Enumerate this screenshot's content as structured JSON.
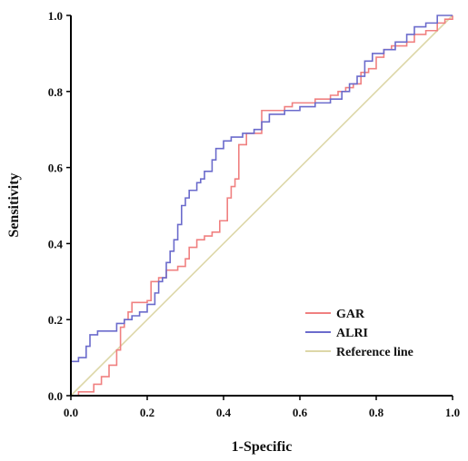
{
  "chart_data": {
    "type": "line",
    "title": "",
    "xlabel": "1-Specific",
    "ylabel": "Sensitivity",
    "xlim": [
      0,
      1
    ],
    "ylim": [
      0,
      1
    ],
    "x_ticks": [
      "0.0",
      "0.2",
      "0.4",
      "0.6",
      "0.8",
      "1.0"
    ],
    "y_ticks": [
      "0.0",
      "0.2",
      "0.4",
      "0.6",
      "0.8",
      "1.0"
    ],
    "grid": false,
    "legend_position": "bottom-right",
    "series": [
      {
        "name": "GAR",
        "color": "#f08080",
        "step": true,
        "points": [
          [
            0.0,
            0.0
          ],
          [
            0.02,
            0.01
          ],
          [
            0.06,
            0.03
          ],
          [
            0.08,
            0.05
          ],
          [
            0.1,
            0.08
          ],
          [
            0.12,
            0.12
          ],
          [
            0.13,
            0.18
          ],
          [
            0.14,
            0.2
          ],
          [
            0.15,
            0.22
          ],
          [
            0.16,
            0.245
          ],
          [
            0.2,
            0.25
          ],
          [
            0.21,
            0.3
          ],
          [
            0.23,
            0.31
          ],
          [
            0.25,
            0.33
          ],
          [
            0.28,
            0.34
          ],
          [
            0.3,
            0.36
          ],
          [
            0.31,
            0.39
          ],
          [
            0.33,
            0.41
          ],
          [
            0.35,
            0.42
          ],
          [
            0.37,
            0.43
          ],
          [
            0.39,
            0.46
          ],
          [
            0.41,
            0.52
          ],
          [
            0.42,
            0.55
          ],
          [
            0.43,
            0.57
          ],
          [
            0.44,
            0.66
          ],
          [
            0.46,
            0.69
          ],
          [
            0.48,
            0.69
          ],
          [
            0.5,
            0.75
          ],
          [
            0.53,
            0.75
          ],
          [
            0.56,
            0.76
          ],
          [
            0.58,
            0.77
          ],
          [
            0.62,
            0.77
          ],
          [
            0.64,
            0.78
          ],
          [
            0.68,
            0.79
          ],
          [
            0.7,
            0.8
          ],
          [
            0.72,
            0.81
          ],
          [
            0.74,
            0.82
          ],
          [
            0.76,
            0.85
          ],
          [
            0.78,
            0.86
          ],
          [
            0.8,
            0.89
          ],
          [
            0.82,
            0.91
          ],
          [
            0.84,
            0.92
          ],
          [
            0.88,
            0.93
          ],
          [
            0.9,
            0.95
          ],
          [
            0.93,
            0.96
          ],
          [
            0.96,
            0.98
          ],
          [
            0.98,
            0.99
          ],
          [
            1.0,
            1.0
          ]
        ]
      },
      {
        "name": "ALRI",
        "color": "#6b6bcc",
        "step": true,
        "points": [
          [
            0.0,
            0.0
          ],
          [
            0.0,
            0.09
          ],
          [
            0.02,
            0.1
          ],
          [
            0.04,
            0.13
          ],
          [
            0.05,
            0.16
          ],
          [
            0.07,
            0.17
          ],
          [
            0.11,
            0.17
          ],
          [
            0.12,
            0.19
          ],
          [
            0.14,
            0.2
          ],
          [
            0.16,
            0.21
          ],
          [
            0.18,
            0.22
          ],
          [
            0.2,
            0.24
          ],
          [
            0.22,
            0.27
          ],
          [
            0.23,
            0.3
          ],
          [
            0.24,
            0.31
          ],
          [
            0.25,
            0.35
          ],
          [
            0.26,
            0.38
          ],
          [
            0.27,
            0.41
          ],
          [
            0.28,
            0.45
          ],
          [
            0.29,
            0.5
          ],
          [
            0.3,
            0.52
          ],
          [
            0.31,
            0.54
          ],
          [
            0.33,
            0.56
          ],
          [
            0.34,
            0.57
          ],
          [
            0.35,
            0.59
          ],
          [
            0.37,
            0.62
          ],
          [
            0.38,
            0.65
          ],
          [
            0.4,
            0.67
          ],
          [
            0.42,
            0.68
          ],
          [
            0.45,
            0.69
          ],
          [
            0.48,
            0.7
          ],
          [
            0.5,
            0.72
          ],
          [
            0.52,
            0.74
          ],
          [
            0.56,
            0.75
          ],
          [
            0.6,
            0.76
          ],
          [
            0.64,
            0.77
          ],
          [
            0.68,
            0.78
          ],
          [
            0.71,
            0.8
          ],
          [
            0.73,
            0.82
          ],
          [
            0.75,
            0.84
          ],
          [
            0.77,
            0.88
          ],
          [
            0.79,
            0.9
          ],
          [
            0.82,
            0.91
          ],
          [
            0.85,
            0.93
          ],
          [
            0.88,
            0.95
          ],
          [
            0.9,
            0.97
          ],
          [
            0.93,
            0.98
          ],
          [
            0.96,
            1.0
          ],
          [
            1.0,
            1.0
          ]
        ]
      },
      {
        "name": "Reference line",
        "color": "#ddd7a8",
        "step": false,
        "points": [
          [
            0.0,
            0.0
          ],
          [
            1.0,
            1.0
          ]
        ]
      }
    ]
  }
}
